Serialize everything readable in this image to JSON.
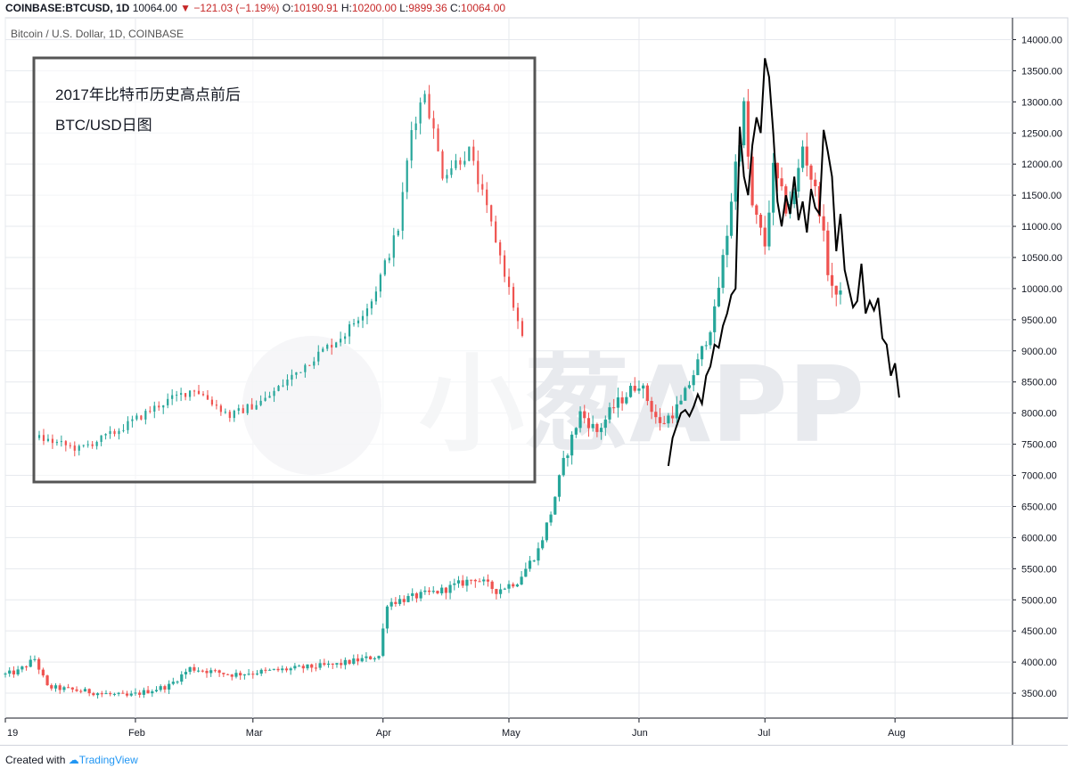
{
  "header": {
    "symbol": "COINBASE:BTCUSD, 1D",
    "last": "10064.00",
    "change": "−121.03 (−1.19%)",
    "o_label": "O:",
    "o_value": "10190.91",
    "h_label": "H:",
    "h_value": "10200.00",
    "l_label": "L:",
    "l_value": "9899.36",
    "c_label": "C:",
    "c_value": "10064.00"
  },
  "subtitle": "Bitcoin / U.S. Dollar, 1D, COINBASE",
  "inset": {
    "line1": "2017年比特币历史高点前后",
    "line2": "BTC/USD日图"
  },
  "watermark": "小葱APP",
  "footer": {
    "created": "Created with",
    "brand": "TradingView"
  },
  "colors": {
    "up": "#26a69a",
    "down": "#ef5350",
    "grid": "#e6e9ee",
    "overlay": "#000000",
    "inset_border": "#555555"
  },
  "chart_data": {
    "type": "candlestick",
    "ylim": [
      3100,
      14350
    ],
    "y_ticks": [
      "14000.00",
      "13500.00",
      "13000.00",
      "12500.00",
      "12000.00",
      "11500.00",
      "11000.00",
      "10500.00",
      "10000.00",
      "9500.00",
      "9000.00",
      "8500.00",
      "8000.00",
      "7500.00",
      "7000.00",
      "6500.00",
      "6000.00",
      "5500.00",
      "5000.00",
      "4500.00",
      "4000.00",
      "3500.00"
    ],
    "x_ticks": [
      "19",
      "Feb",
      "Mar",
      "Apr",
      "May",
      "Jun",
      "Jul",
      "Aug"
    ],
    "x_tick_days": [
      1,
      32,
      60,
      91,
      121,
      152,
      182,
      213
    ],
    "xlim": [
      1,
      241
    ],
    "segments": [
      {
        "from_day": 1,
        "from": 3800,
        "to_day": 4,
        "to": 3850
      },
      {
        "from_day": 4,
        "from": 3850,
        "to_day": 8,
        "to": 4050
      },
      {
        "from_day": 8,
        "from": 4050,
        "to_day": 11,
        "to": 3600
      },
      {
        "from_day": 11,
        "from": 3600,
        "to_day": 30,
        "to": 3450
      },
      {
        "from_day": 30,
        "from": 3450,
        "to_day": 40,
        "to": 3620
      },
      {
        "from_day": 40,
        "from": 3620,
        "to_day": 45,
        "to": 3900
      },
      {
        "from_day": 45,
        "from": 3900,
        "to_day": 55,
        "to": 3800
      },
      {
        "from_day": 55,
        "from": 3800,
        "to_day": 80,
        "to": 3960
      },
      {
        "from_day": 80,
        "from": 3960,
        "to_day": 90,
        "to": 4100
      },
      {
        "from_day": 90,
        "from": 4100,
        "to_day": 92,
        "to": 4950
      },
      {
        "from_day": 92,
        "from": 4950,
        "to_day": 105,
        "to": 5150
      },
      {
        "from_day": 105,
        "from": 5150,
        "to_day": 113,
        "to": 5350
      },
      {
        "from_day": 113,
        "from": 5350,
        "to_day": 118,
        "to": 5150
      },
      {
        "from_day": 118,
        "from": 5150,
        "to_day": 123,
        "to": 5300
      },
      {
        "from_day": 123,
        "from": 5300,
        "to_day": 128,
        "to": 5800
      },
      {
        "from_day": 128,
        "from": 5800,
        "to_day": 131,
        "to": 6400
      },
      {
        "from_day": 131,
        "from": 6400,
        "to_day": 134,
        "to": 7200
      },
      {
        "from_day": 134,
        "from": 7200,
        "to_day": 138,
        "to": 8000
      },
      {
        "from_day": 138,
        "from": 8000,
        "to_day": 142,
        "to": 7700
      },
      {
        "from_day": 142,
        "from": 7700,
        "to_day": 146,
        "to": 8100
      },
      {
        "from_day": 146,
        "from": 8100,
        "to_day": 152,
        "to": 8500
      },
      {
        "from_day": 152,
        "from": 8500,
        "to_day": 157,
        "to": 7800
      },
      {
        "from_day": 157,
        "from": 7800,
        "to_day": 162,
        "to": 8150
      },
      {
        "from_day": 162,
        "from": 8150,
        "to_day": 166,
        "to": 8800
      },
      {
        "from_day": 166,
        "from": 8800,
        "to_day": 170,
        "to": 9600
      },
      {
        "from_day": 170,
        "from": 9600,
        "to_day": 173,
        "to": 10900
      },
      {
        "from_day": 173,
        "from": 10900,
        "to_day": 175,
        "to": 12000
      },
      {
        "from_day": 175,
        "from": 12000,
        "to_day": 177,
        "to": 12900
      },
      {
        "from_day": 177,
        "from": 12900,
        "to_day": 179,
        "to": 11300
      },
      {
        "from_day": 179,
        "from": 11300,
        "to_day": 182,
        "to": 10700
      },
      {
        "from_day": 182,
        "from": 10700,
        "to_day": 184,
        "to": 11900
      },
      {
        "from_day": 184,
        "from": 11900,
        "to_day": 187,
        "to": 11300
      },
      {
        "from_day": 187,
        "from": 11300,
        "to_day": 189,
        "to": 11500
      },
      {
        "from_day": 189,
        "from": 11500,
        "to_day": 191,
        "to": 12300
      },
      {
        "from_day": 191,
        "from": 12300,
        "to_day": 195,
        "to": 11300
      },
      {
        "from_day": 195,
        "from": 11300,
        "to_day": 197,
        "to": 10300
      },
      {
        "from_day": 197,
        "from": 10300,
        "to_day": 199,
        "to": 9800
      },
      {
        "from_day": 199,
        "from": 9800,
        "to_day": 200,
        "to": 10064
      }
    ],
    "overlay_line": {
      "points": [
        [
          159,
          7150
        ],
        [
          160,
          7600
        ],
        [
          161,
          7800
        ],
        [
          162,
          8000
        ],
        [
          163,
          8050
        ],
        [
          164,
          7950
        ],
        [
          165,
          8100
        ],
        [
          166,
          8300
        ],
        [
          167,
          8150
        ],
        [
          168,
          8600
        ],
        [
          169,
          8750
        ],
        [
          170,
          9100
        ],
        [
          171,
          9050
        ],
        [
          172,
          9400
        ],
        [
          173,
          9600
        ],
        [
          174,
          9900
        ],
        [
          175,
          10000
        ],
        [
          176,
          12600
        ],
        [
          177,
          11800
        ],
        [
          178,
          11500
        ],
        [
          179,
          12300
        ],
        [
          180,
          12750
        ],
        [
          181,
          12500
        ],
        [
          182,
          13700
        ],
        [
          183,
          13400
        ],
        [
          184,
          12500
        ],
        [
          185,
          11400
        ],
        [
          186,
          11000
        ],
        [
          187,
          11500
        ],
        [
          188,
          11200
        ],
        [
          189,
          11800
        ],
        [
          190,
          11100
        ],
        [
          191,
          11400
        ],
        [
          192,
          10900
        ],
        [
          193,
          11600
        ],
        [
          194,
          11300
        ],
        [
          195,
          11200
        ],
        [
          196,
          12550
        ],
        [
          197,
          12200
        ],
        [
          198,
          11800
        ],
        [
          199,
          10600
        ],
        [
          200,
          11200
        ],
        [
          201,
          10300
        ],
        [
          202,
          10000
        ],
        [
          203,
          9700
        ],
        [
          204,
          9800
        ],
        [
          205,
          10400
        ],
        [
          206,
          9600
        ],
        [
          207,
          9800
        ],
        [
          208,
          9650
        ],
        [
          209,
          9850
        ],
        [
          210,
          9200
        ],
        [
          211,
          9100
        ],
        [
          212,
          8600
        ],
        [
          213,
          8800
        ],
        [
          214,
          8250
        ]
      ],
      "color": "#000000"
    },
    "inset_chart": {
      "ylim": [
        6500,
        14000
      ],
      "note": ""
    }
  }
}
